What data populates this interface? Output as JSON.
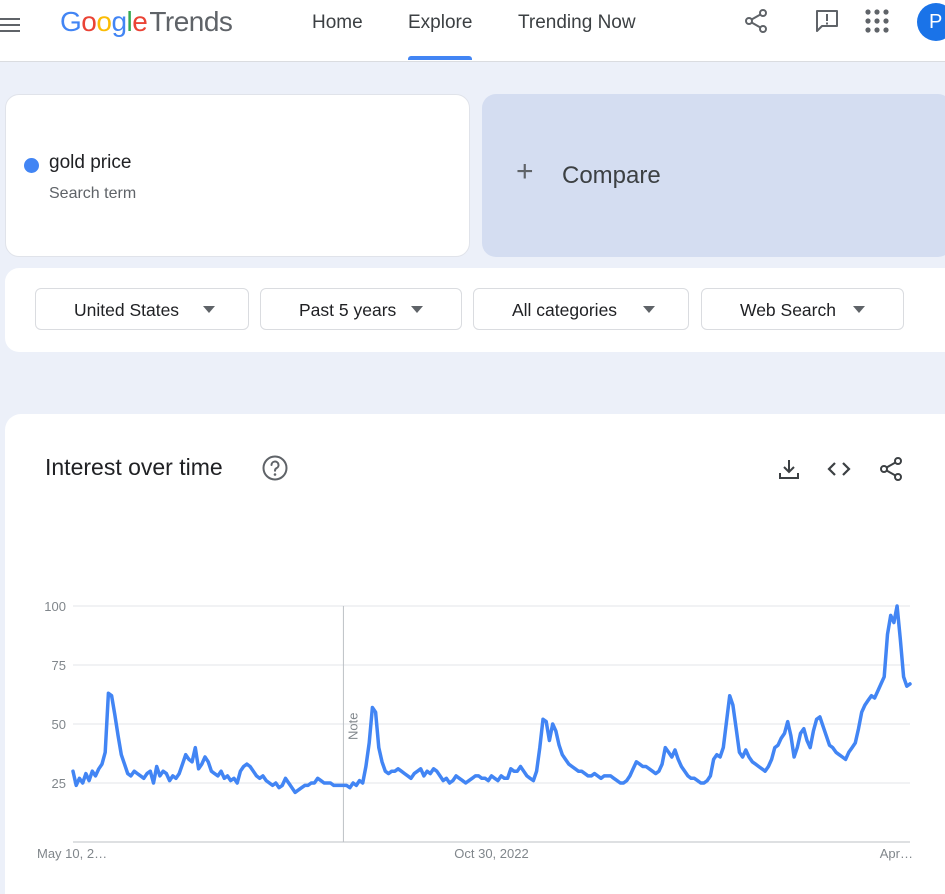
{
  "header": {
    "logo": {
      "google": [
        "G",
        "o",
        "o",
        "g",
        "l",
        "e"
      ],
      "product": "Trends"
    },
    "tabs": [
      {
        "label": "Home"
      },
      {
        "label": "Explore",
        "active": true
      },
      {
        "label": "Trending Now"
      }
    ],
    "icons": [
      "share-icon",
      "feedback-icon",
      "apps-grid-icon"
    ],
    "avatar_initial": "P"
  },
  "search": {
    "term": "gold price",
    "term_type": "Search term",
    "term_color": "#4285f4",
    "compare_label": "Compare",
    "compare_icon": "plus-icon"
  },
  "filters": [
    {
      "label": "United States"
    },
    {
      "label": "Past 5 years"
    },
    {
      "label": "All categories"
    },
    {
      "label": "Web Search"
    }
  ],
  "interest": {
    "title": "Interest over time",
    "icons": [
      "help-icon",
      "download-icon",
      "embed-icon",
      "share-icon"
    ]
  },
  "chart_data": {
    "type": "line",
    "title": "Interest over time",
    "xlabel": "",
    "ylabel": "",
    "ylim": [
      0,
      100
    ],
    "y_ticks": [
      25,
      50,
      75,
      100
    ],
    "x_tick_labels": [
      "May 10, 2…",
      "Oct 30, 2022",
      "Apr…"
    ],
    "x_tick_index": [
      0,
      130,
      259
    ],
    "note_label": "Note",
    "note_index": 84,
    "grid": true,
    "legend": "none",
    "series": [
      {
        "color": "#4285f4",
        "values": [
          30,
          24,
          27,
          25,
          29,
          26,
          30,
          28,
          31,
          33,
          38,
          63,
          62,
          54,
          45,
          37,
          33,
          29,
          28,
          30,
          29,
          28,
          27,
          29,
          30,
          25,
          32,
          28,
          30,
          29,
          26,
          28,
          27,
          29,
          33,
          37,
          35,
          34,
          40,
          31,
          33,
          36,
          34,
          30,
          29,
          28,
          30,
          27,
          28,
          26,
          27,
          25,
          30,
          32,
          33,
          32,
          30,
          28,
          27,
          28,
          26,
          25,
          24,
          25,
          23,
          24,
          27,
          25,
          23,
          21,
          22,
          23,
          24,
          24,
          25,
          25,
          27,
          26,
          25,
          25,
          25,
          24,
          24,
          24,
          24,
          24,
          23,
          25,
          24,
          26,
          25,
          32,
          42,
          57,
          55,
          40,
          34,
          30,
          29,
          30,
          30,
          31,
          30,
          29,
          28,
          27,
          29,
          30,
          31,
          28,
          30,
          29,
          31,
          30,
          28,
          26,
          27,
          25,
          26,
          28,
          27,
          26,
          25,
          26,
          27,
          28,
          28,
          27,
          27,
          26,
          28,
          27,
          26,
          28,
          27,
          27,
          31,
          30,
          30,
          32,
          30,
          28,
          27,
          26,
          30,
          40,
          52,
          51,
          43,
          50,
          47,
          41,
          37,
          35,
          33,
          32,
          31,
          30,
          30,
          29,
          28,
          28,
          29,
          28,
          27,
          28,
          28,
          28,
          27,
          26,
          25,
          25,
          26,
          28,
          31,
          34,
          33,
          32,
          32,
          31,
          30,
          29,
          30,
          33,
          40,
          38,
          36,
          39,
          35,
          32,
          30,
          28,
          27,
          27,
          26,
          25,
          25,
          26,
          28,
          35,
          37,
          36,
          40,
          51,
          62,
          58,
          48,
          38,
          36,
          39,
          36,
          34,
          33,
          32,
          31,
          30,
          32,
          35,
          40,
          41,
          44,
          46,
          51,
          45,
          36,
          40,
          46,
          48,
          43,
          40,
          47,
          52,
          53,
          49,
          45,
          41,
          40,
          38,
          37,
          36,
          35,
          38,
          40,
          42,
          48,
          55,
          58,
          60,
          62,
          61,
          64,
          67,
          70,
          88,
          96,
          93,
          100,
          86,
          70,
          66,
          67
        ]
      }
    ]
  }
}
